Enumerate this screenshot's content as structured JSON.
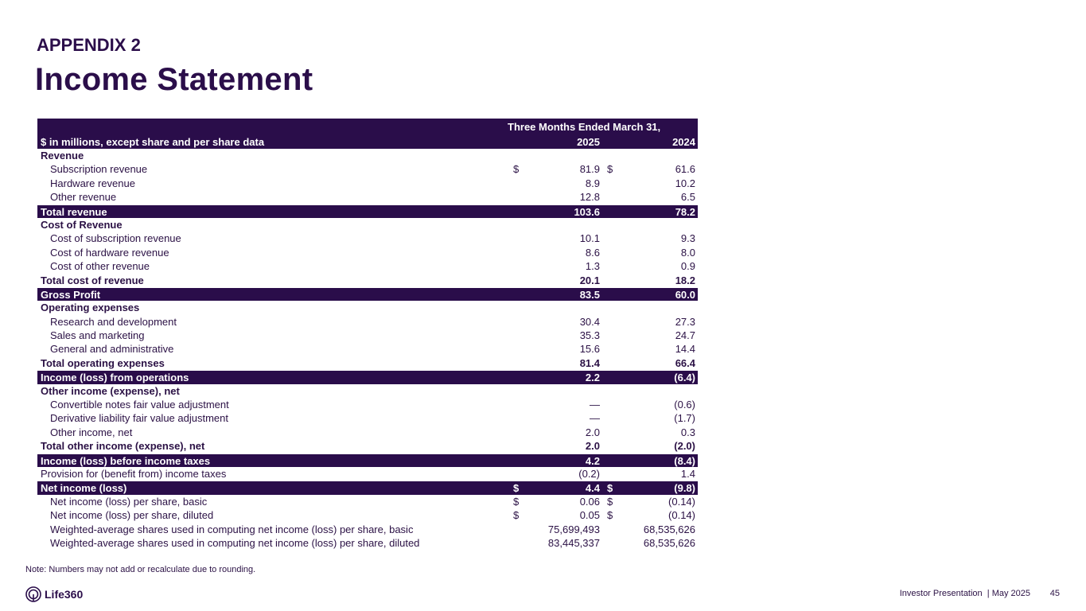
{
  "header": {
    "supertitle": "APPENDIX 2",
    "title": "Income Statement"
  },
  "table": {
    "period_label": "Three Months Ended March 31,",
    "units_label": "$ in millions, except share and per share data",
    "years": [
      "2025",
      "2024"
    ],
    "rows": [
      {
        "type": "section",
        "label": "Revenue"
      },
      {
        "type": "indent",
        "label": "Subscription revenue",
        "d1": "$",
        "v1": "81.9",
        "d2": "$",
        "v2": "61.6"
      },
      {
        "type": "indent",
        "label": "Hardware revenue",
        "v1": "8.9",
        "v2": "10.2"
      },
      {
        "type": "indent",
        "label": "Other revenue",
        "v1": "12.8",
        "v2": "6.5"
      },
      {
        "type": "hl",
        "label": "Total revenue",
        "v1": "103.6",
        "v2": "78.2"
      },
      {
        "type": "section",
        "label": "Cost of Revenue"
      },
      {
        "type": "indent",
        "label": "Cost of subscription revenue",
        "v1": "10.1",
        "v2": "9.3"
      },
      {
        "type": "indent",
        "label": "Cost of hardware revenue",
        "v1": "8.6",
        "v2": "8.0"
      },
      {
        "type": "indent",
        "label": "Cost of other revenue",
        "v1": "1.3",
        "v2": "0.9"
      },
      {
        "type": "section",
        "label": "Total cost of revenue",
        "v1": "20.1",
        "v2": "18.2"
      },
      {
        "type": "hl",
        "label": "Gross Profit",
        "v1": "83.5",
        "v2": "60.0"
      },
      {
        "type": "section",
        "label": "Operating expenses"
      },
      {
        "type": "indent",
        "label": "Research and development",
        "v1": "30.4",
        "v2": "27.3"
      },
      {
        "type": "indent",
        "label": "Sales and marketing",
        "v1": "35.3",
        "v2": "24.7"
      },
      {
        "type": "indent",
        "label": "General and administrative",
        "v1": "15.6",
        "v2": "14.4"
      },
      {
        "type": "section",
        "label": "Total operating expenses",
        "v1": "81.4",
        "v2": "66.4"
      },
      {
        "type": "hl",
        "label": "Income (loss) from operations",
        "v1": "2.2",
        "v2": "(6.4)"
      },
      {
        "type": "section",
        "label": "Other income (expense), net"
      },
      {
        "type": "indent",
        "label": "Convertible notes fair value adjustment",
        "v1": "—",
        "v2": "(0.6)"
      },
      {
        "type": "indent",
        "label": "Derivative liability fair value adjustment",
        "v1": "—",
        "v2": "(1.7)"
      },
      {
        "type": "indent",
        "label": "Other income, net",
        "v1": "2.0",
        "v2": "0.3"
      },
      {
        "type": "section",
        "label": "Total other income (expense), net",
        "v1": "2.0",
        "v2": "(2.0)"
      },
      {
        "type": "hl",
        "label": "Income (loss) before income taxes",
        "v1": "4.2",
        "v2": "(8.4)"
      },
      {
        "type": "plain",
        "label": "Provision for (benefit from) income taxes",
        "v1": "(0.2)",
        "v2": "1.4"
      },
      {
        "type": "hl",
        "label": "Net income (loss)",
        "d1": "$",
        "v1": "4.4",
        "d2": "$",
        "v2": "(9.8)"
      },
      {
        "type": "indent",
        "label": "Net income (loss) per share, basic",
        "d1": "$",
        "v1": "0.06",
        "d2": "$",
        "v2": "(0.14)"
      },
      {
        "type": "indent",
        "label": "Net income (loss) per share, diluted",
        "d1": "$",
        "v1": "0.05",
        "d2": "$",
        "v2": "(0.14)"
      },
      {
        "type": "indent",
        "label": "Weighted-average shares used in computing net income (loss) per share, basic",
        "v1": "75,699,493",
        "v2": "68,535,626"
      },
      {
        "type": "indent",
        "label": "Weighted-average shares used in computing net income (loss) per share, diluted",
        "v1": "83,445,337",
        "v2": "68,535,626"
      }
    ]
  },
  "note": "Note: Numbers may not add or recalculate due to rounding.",
  "footer": {
    "logo": "Life360",
    "presentation": "Investor Presentation  | May 2025",
    "page": "45"
  },
  "colors": {
    "brand": "#2a0d4a"
  }
}
